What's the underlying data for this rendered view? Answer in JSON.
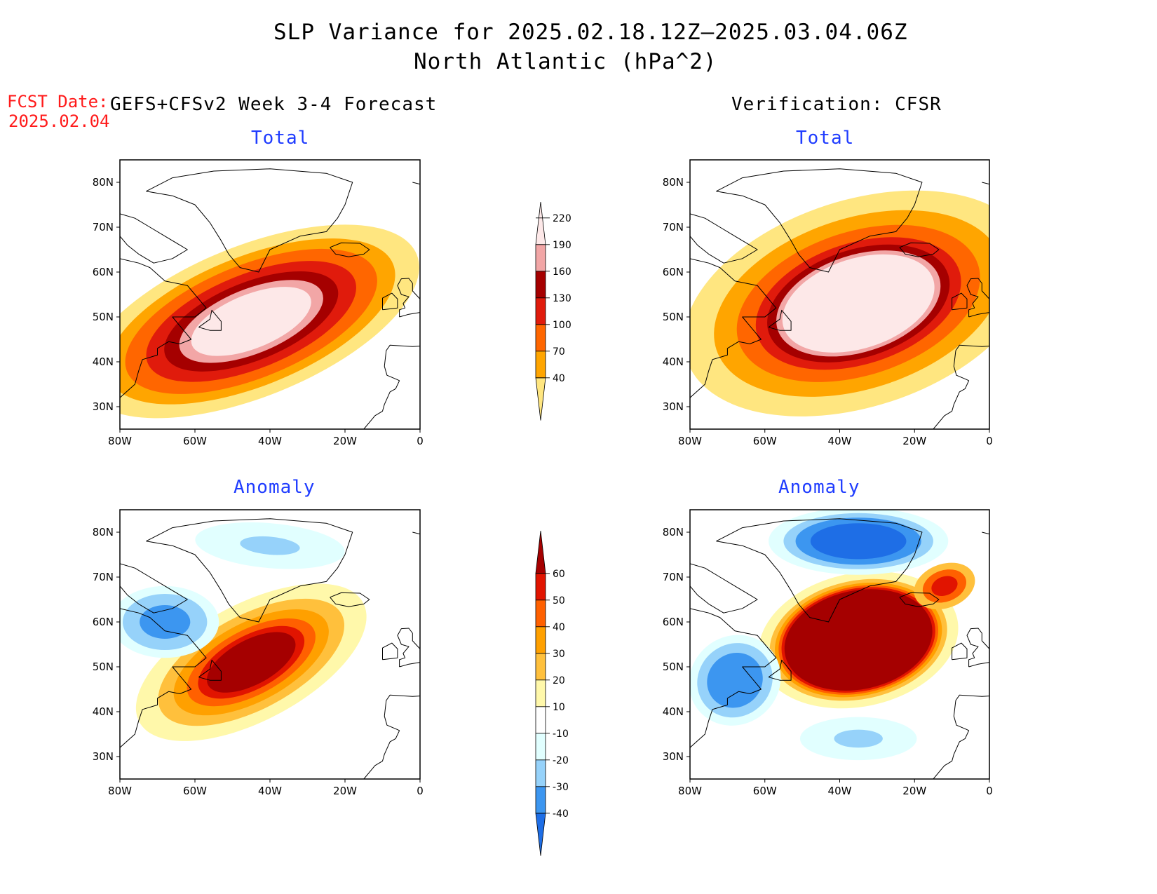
{
  "title": {
    "line1": "SLP Variance for 2025.02.18.12Z–2025.03.04.06Z",
    "line2": "North Atlantic (hPa^2)"
  },
  "fcst_date": {
    "label": "FCST Date:",
    "value": "2025.02.04"
  },
  "columns": {
    "left": "GEFS+CFSv2 Week 3-4 Forecast",
    "right": "Verification: CFSR"
  },
  "panel_titles": {
    "total": "Total",
    "anomaly": "Anomaly"
  },
  "axes": {
    "lon_ticks": [
      "80W",
      "60W",
      "40W",
      "20W",
      "0"
    ],
    "lat_ticks": [
      "30N",
      "40N",
      "50N",
      "60N",
      "70N",
      "80N"
    ],
    "lon_values": [
      -80,
      -60,
      -40,
      -20,
      0
    ],
    "lat_values": [
      30,
      40,
      50,
      60,
      70,
      80
    ],
    "lon_range": [
      -80,
      0
    ],
    "lat_range": [
      25,
      85
    ]
  },
  "colorbars": {
    "total": {
      "labels": [
        "40",
        "70",
        "100",
        "130",
        "160",
        "190",
        "220"
      ],
      "colors": [
        "#ffe680",
        "#ffa500",
        "#ff6600",
        "#e01b0c",
        "#a50000",
        "#f2a6a6",
        "#fde8e8"
      ]
    },
    "anomaly": {
      "labels": [
        "-40",
        "-30",
        "-20",
        "-10",
        "10",
        "20",
        "30",
        "40",
        "50",
        "60"
      ],
      "colors": [
        "#1e6ee6",
        "#3c96f0",
        "#96d2fa",
        "#e1ffff",
        "#ffffff",
        "#fff8aa",
        "#ffc03c",
        "#ffa000",
        "#ff6000",
        "#e11400",
        "#a50000"
      ]
    }
  },
  "fields": {
    "forecast_total": {
      "center": [
        -45,
        49
      ],
      "rx": 17,
      "ry": 6,
      "rot": -22,
      "layers": [
        {
          "c": "#ffe680",
          "s": 2.8
        },
        {
          "c": "#ffa500",
          "s": 2.4
        },
        {
          "c": "#ff6600",
          "s": 2.1
        },
        {
          "c": "#e01b0c",
          "s": 1.75
        },
        {
          "c": "#a50000",
          "s": 1.45
        },
        {
          "c": "#f2a6a6",
          "s": 1.2
        },
        {
          "c": "#fde8e8",
          "s": 1.0
        }
      ]
    },
    "verif_total": {
      "center": [
        -35,
        53
      ],
      "rx": 21,
      "ry": 10,
      "rot": -18,
      "layers": [
        {
          "c": "#ffe680",
          "s": 2.3
        },
        {
          "c": "#ffa500",
          "s": 1.9
        },
        {
          "c": "#ff6600",
          "s": 1.6
        },
        {
          "c": "#e01b0c",
          "s": 1.35
        },
        {
          "c": "#a50000",
          "s": 1.2
        },
        {
          "c": "#f2a6a6",
          "s": 1.08
        },
        {
          "c": "#fde8e8",
          "s": 1.0
        }
      ]
    },
    "forecast_anomaly": {
      "center": [
        -45,
        51
      ],
      "rx": 13,
      "ry": 5,
      "rot": -28,
      "layers": [
        {
          "c": "#fff8aa",
          "s": 2.6
        },
        {
          "c": "#ffc03c",
          "s": 2.1
        },
        {
          "c": "#ffa000",
          "s": 1.75
        },
        {
          "c": "#ff6000",
          "s": 1.45
        },
        {
          "c": "#e11400",
          "s": 1.2
        },
        {
          "c": "#a50000",
          "s": 1.0
        }
      ],
      "neg": [
        {
          "center": [
            -68,
            60
          ],
          "rx": 9,
          "ry": 5,
          "rot": 0,
          "layers": [
            {
              "c": "#e1ffff",
              "s": 1.6
            },
            {
              "c": "#96d2fa",
              "s": 1.25
            },
            {
              "c": "#3c96f0",
              "s": 0.75
            }
          ]
        },
        {
          "center": [
            -40,
            77
          ],
          "rx": 20,
          "ry": 5,
          "rot": 5,
          "layers": [
            {
              "c": "#e1ffff",
              "s": 1.0
            },
            {
              "c": "#96d2fa",
              "s": 0.4
            }
          ]
        }
      ]
    },
    "verif_anomaly": {
      "center": [
        -35,
        56
      ],
      "rx": 20,
      "ry": 11,
      "rot": -12,
      "layers": [
        {
          "c": "#fff8aa",
          "s": 1.35
        },
        {
          "c": "#ffc03c",
          "s": 1.2
        },
        {
          "c": "#ffa000",
          "s": 1.13
        },
        {
          "c": "#ff6000",
          "s": 1.08
        },
        {
          "c": "#e11400",
          "s": 1.04
        },
        {
          "c": "#a50000",
          "s": 1.0
        }
      ],
      "neg": [
        {
          "center": [
            -35,
            78
          ],
          "rx": 16,
          "ry": 5,
          "rot": 0,
          "layers": [
            {
              "c": "#e1ffff",
              "s": 1.5
            },
            {
              "c": "#96d2fa",
              "s": 1.25
            },
            {
              "c": "#3c96f0",
              "s": 1.05
            },
            {
              "c": "#1e6ee6",
              "s": 0.8
            }
          ]
        },
        {
          "center": [
            -68,
            47
          ],
          "rx": 9,
          "ry": 7,
          "rot": -40,
          "layers": [
            {
              "c": "#e1ffff",
              "s": 1.4
            },
            {
              "c": "#96d2fa",
              "s": 1.15
            },
            {
              "c": "#3c96f0",
              "s": 0.85
            }
          ]
        },
        {
          "center": [
            -35,
            34
          ],
          "rx": 13,
          "ry": 4,
          "rot": 0,
          "layers": [
            {
              "c": "#e1ffff",
              "s": 1.2
            },
            {
              "c": "#96d2fa",
              "s": 0.5
            }
          ]
        }
      ],
      "pos2": [
        {
          "center": [
            -12,
            68
          ],
          "rx": 6,
          "ry": 3.5,
          "rot": -20,
          "layers": [
            {
              "c": "#ffc03c",
              "s": 1.4
            },
            {
              "c": "#ff6000",
              "s": 1.0
            },
            {
              "c": "#e11400",
              "s": 0.6
            }
          ]
        }
      ]
    }
  }
}
